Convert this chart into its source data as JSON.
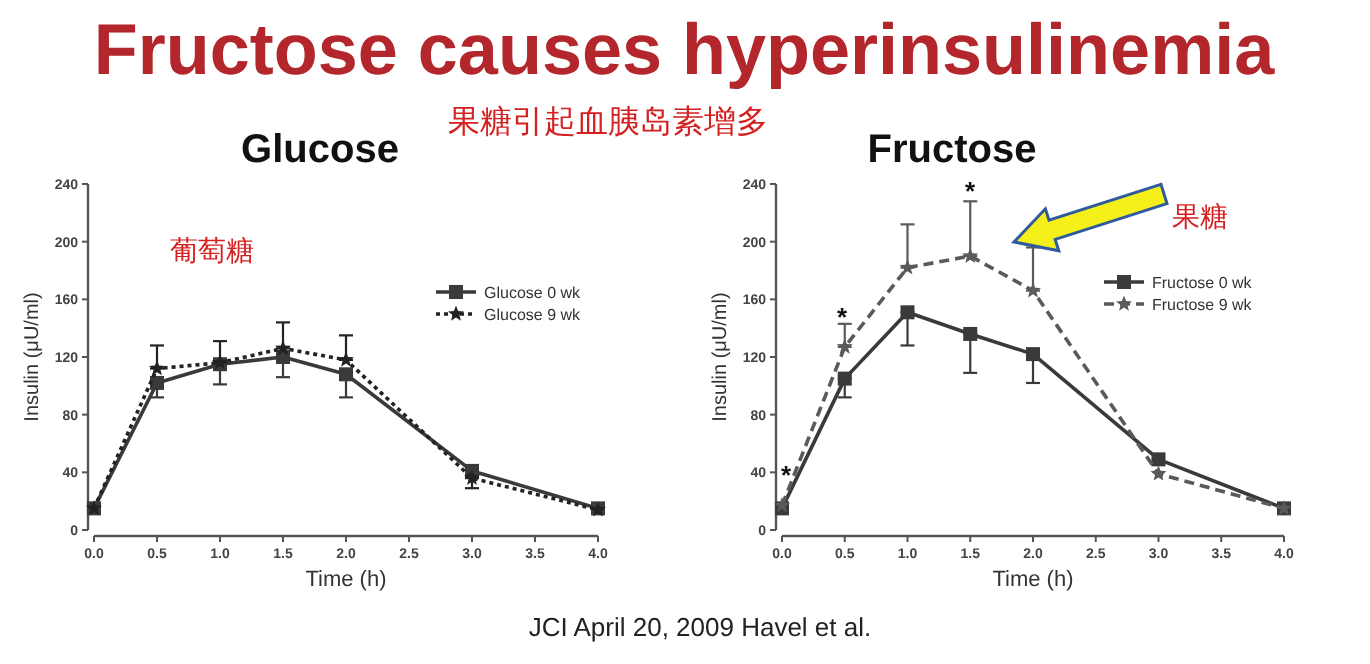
{
  "chart_data": [
    {
      "type": "other",
      "title": "Fructose causes hyperinsulinemia",
      "subtitle": "果糖引起血胰岛素增多",
      "annotations": [
        "JCI April 20, 2009 Havel et al."
      ]
    },
    {
      "type": "line",
      "title": "Glucose",
      "xlabel": "Time (h)",
      "ylabel": "Insulin (μU/ml)",
      "x": [
        0,
        0.5,
        1,
        1.5,
        2,
        3,
        4
      ],
      "xlim": [
        0,
        4
      ],
      "ylim": [
        0,
        240
      ],
      "xticks": [
        {
          "value": 0,
          "label": "0.0"
        },
        {
          "value": 0.5,
          "label": "0.5"
        },
        {
          "value": 1,
          "label": "1.0"
        },
        {
          "value": 1.5,
          "label": "1.5"
        },
        {
          "value": 2,
          "label": "2.0"
        },
        {
          "value": 2.5,
          "label": "2.5"
        },
        {
          "value": 3,
          "label": "3.0"
        },
        {
          "value": 3.5,
          "label": "3.5"
        },
        {
          "value": 4,
          "label": "4.0"
        }
      ],
      "yticks": [
        0,
        40,
        80,
        120,
        160,
        200,
        240
      ],
      "legend": "top right",
      "grid": false,
      "annotations": [
        "葡萄糖"
      ],
      "series": [
        {
          "name": "Glucose 0 wk",
          "color": "#3a3a3a",
          "marker": "square",
          "line_style": "solid",
          "values": [
            15,
            102,
            115,
            120,
            108,
            41,
            15
          ],
          "errors": [
            null,
            [
              92,
              102
            ],
            [
              101,
              115
            ],
            [
              106,
              120
            ],
            [
              92,
              108
            ],
            null,
            null
          ]
        },
        {
          "name": "Glucose 9 wk",
          "color": "#222222",
          "marker": "star",
          "line_style": "dotted",
          "values": [
            15,
            112,
            116,
            126,
            118,
            36,
            14
          ],
          "errors": [
            null,
            [
              112,
              128
            ],
            [
              116,
              131
            ],
            [
              126,
              144
            ],
            [
              118,
              135
            ],
            [
              29,
              36
            ],
            null
          ]
        }
      ]
    },
    {
      "type": "line",
      "title": "Fructose",
      "xlabel": "Time (h)",
      "ylabel": "Insulin (μU/ml)",
      "x": [
        0,
        0.5,
        1,
        1.5,
        2,
        3,
        4
      ],
      "xlim": [
        0,
        4
      ],
      "ylim": [
        0,
        240
      ],
      "xticks": [
        {
          "value": 0,
          "label": "0.0"
        },
        {
          "value": 0.5,
          "label": "0.5"
        },
        {
          "value": 1,
          "label": "1.0"
        },
        {
          "value": 1.5,
          "label": "1.5"
        },
        {
          "value": 2,
          "label": "2.0"
        },
        {
          "value": 2.5,
          "label": "2.5"
        },
        {
          "value": 3,
          "label": "3.0"
        },
        {
          "value": 3.5,
          "label": "3.5"
        },
        {
          "value": 4,
          "label": "4.0"
        }
      ],
      "yticks": [
        0,
        40,
        80,
        120,
        160,
        200,
        240
      ],
      "legend": "top right",
      "grid": false,
      "annotations": [
        "果糖",
        "*",
        "*",
        "*"
      ],
      "series": [
        {
          "name": "Fructose 0 wk",
          "color": "#3a3a3a",
          "marker": "square",
          "line_style": "solid",
          "values": [
            15,
            105,
            151,
            136,
            122,
            49,
            15
          ],
          "errors": [
            null,
            [
              92,
              105
            ],
            [
              128,
              151
            ],
            [
              109,
              136
            ],
            [
              102,
              122
            ],
            null,
            null
          ]
        },
        {
          "name": "Fructose 9 wk",
          "color": "#5a5a5a",
          "marker": "star",
          "line_style": "dashed",
          "values": [
            17,
            127,
            182,
            190,
            166,
            39,
            15
          ],
          "errors": [
            null,
            [
              127,
              143
            ],
            [
              182,
              212
            ],
            [
              190,
              228
            ],
            [
              166,
              196
            ],
            null,
            null
          ]
        }
      ]
    }
  ]
}
